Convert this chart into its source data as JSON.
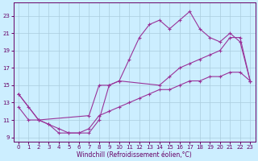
{
  "xlabel": "Windchill (Refroidissement éolien,°C)",
  "background_color": "#cceeff",
  "grid_color": "#aaccdd",
  "line_color": "#993399",
  "xlim": [
    -0.5,
    23.5
  ],
  "ylim": [
    8.5,
    24.5
  ],
  "xticks": [
    0,
    1,
    2,
    3,
    4,
    5,
    6,
    7,
    8,
    9,
    10,
    11,
    12,
    13,
    14,
    15,
    16,
    17,
    18,
    19,
    20,
    21,
    22,
    23
  ],
  "yticks": [
    9,
    11,
    13,
    15,
    17,
    19,
    21,
    23
  ],
  "curve1": {
    "x": [
      0,
      1,
      2,
      3,
      4,
      5,
      6,
      7,
      8,
      9,
      10,
      11,
      12,
      13,
      14,
      15,
      16,
      17,
      18,
      19,
      20,
      21,
      22,
      23
    ],
    "y": [
      14,
      12.5,
      11,
      10.5,
      10,
      9.5,
      9.5,
      9.5,
      11.0,
      15.0,
      15.5,
      18.0,
      20.5,
      22.0,
      22.5,
      21.5,
      22.5,
      23.5,
      21.5,
      20.5,
      20.0,
      21.0,
      20.0,
      15.5
    ]
  },
  "curve2": {
    "x": [
      0,
      2,
      7,
      8,
      9,
      10,
      14,
      15,
      16,
      17,
      18,
      19,
      20,
      21,
      22,
      23
    ],
    "y": [
      14,
      11,
      11.5,
      15.0,
      15.0,
      15.5,
      15.0,
      16.0,
      17.0,
      17.5,
      18.0,
      18.5,
      19.0,
      20.5,
      20.5,
      15.5
    ]
  },
  "curve3": {
    "x": [
      0,
      1,
      2,
      3,
      4,
      5,
      6,
      7,
      8,
      9,
      10,
      11,
      12,
      13,
      14,
      15,
      16,
      17,
      18,
      19,
      20,
      21,
      22,
      23
    ],
    "y": [
      12.5,
      11,
      11,
      10.5,
      9.5,
      9.5,
      9.5,
      10.0,
      11.5,
      12.0,
      12.5,
      13.0,
      13.5,
      14.0,
      14.5,
      14.5,
      15.0,
      15.5,
      15.5,
      16.0,
      16.0,
      16.5,
      16.5,
      15.5
    ]
  },
  "font_size": 5.5,
  "tick_fontsize": 5.0,
  "marker": "+"
}
